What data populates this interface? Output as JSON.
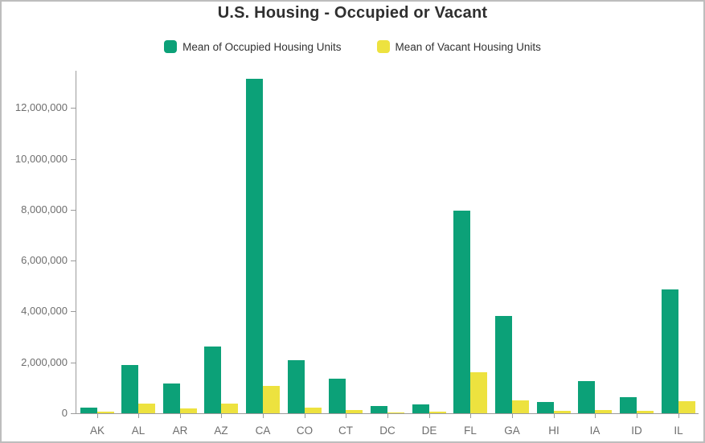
{
  "chart_data": {
    "type": "bar",
    "title": "U.S. Housing - Occupied or Vacant",
    "categories": [
      "AK",
      "AL",
      "AR",
      "AZ",
      "CA",
      "CO",
      "CT",
      "DC",
      "DE",
      "FL",
      "GA",
      "HI",
      "IA",
      "ID",
      "IL"
    ],
    "series": [
      {
        "name": "Mean of Occupied Housing Units",
        "color": "#0CA178",
        "values": [
          230000,
          1880000,
          1160000,
          2620000,
          13150000,
          2100000,
          1370000,
          270000,
          340000,
          7950000,
          3830000,
          440000,
          1250000,
          640000,
          4880000
        ]
      },
      {
        "name": "Mean of Vacant Housing Units",
        "color": "#EDE23F",
        "values": [
          60000,
          370000,
          200000,
          390000,
          1090000,
          210000,
          120000,
          30000,
          70000,
          1620000,
          490000,
          80000,
          120000,
          80000,
          480000
        ]
      }
    ],
    "xlabel": "",
    "ylabel": "",
    "ylim": [
      0,
      13460000
    ],
    "yticks": [
      0,
      2000000,
      4000000,
      6000000,
      8000000,
      10000000,
      12000000
    ],
    "ytick_labels": [
      "0",
      "2,000,000",
      "4,000,000",
      "6,000,000",
      "8,000,000",
      "10,000,000",
      "12,000,000"
    ],
    "grid": false,
    "legend_position": "top"
  },
  "colors": {
    "axis": "#9b9b9b",
    "tick_text": "#6e6e6e",
    "title_text": "#2f2f2f",
    "frame_border": "#bdbdbd"
  }
}
